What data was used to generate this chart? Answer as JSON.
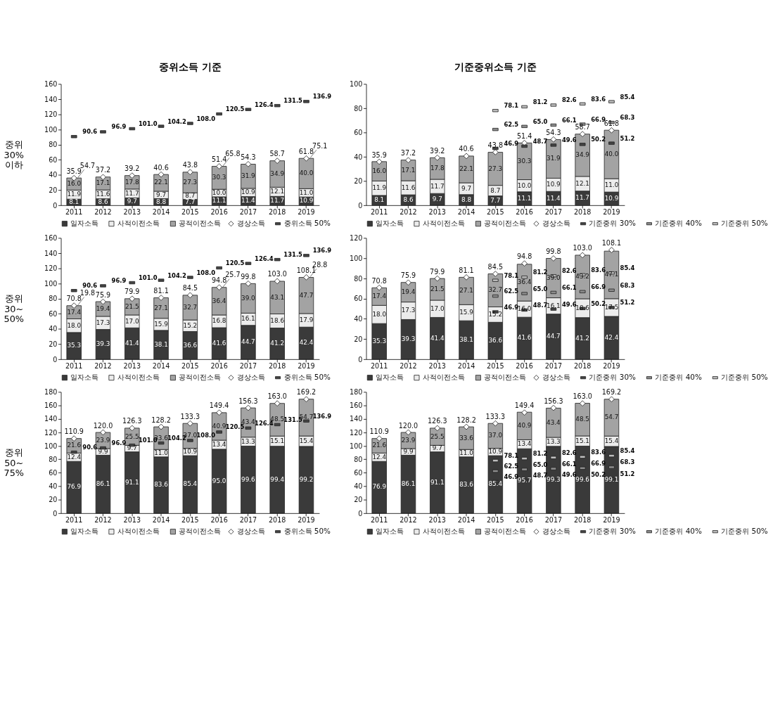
{
  "chart_data": [
    {
      "type": "bar",
      "stacked": true,
      "title": "중위소득 기준",
      "ylabel": "중위\n30%\n이하",
      "categories": [
        "2011",
        "2012",
        "2013",
        "2014",
        "2015",
        "2016",
        "2017",
        "2018",
        "2019"
      ],
      "ylim": [
        0,
        160
      ],
      "yticks": [
        0,
        20,
        40,
        60,
        80,
        100,
        120,
        140,
        160
      ],
      "legend": "bottom",
      "series": [
        {
          "name": "일자소득",
          "color": "#3a3a3a",
          "values": [
            8.1,
            8.6,
            9.7,
            8.8,
            7.7,
            11.1,
            11.4,
            11.7,
            10.9
          ],
          "value_labels": [
            "8.1",
            "8.6",
            "9.7",
            "8.8",
            "7.7",
            "11.1",
            "11.4",
            "11.7",
            "10.9"
          ]
        },
        {
          "name": "사적이전소득",
          "color": "#ececec",
          "values": [
            11.9,
            11.6,
            11.7,
            9.7,
            8.7,
            10.0,
            10.9,
            12.1,
            11.0
          ],
          "value_labels": [
            "11.9",
            "11.6",
            "11.7",
            "9.7",
            "8.7",
            "10.0",
            "10.9",
            "12.1",
            "11.0"
          ]
        },
        {
          "name": "공적이전소득",
          "color": "#a3a3a3",
          "values": [
            16.0,
            17.1,
            17.8,
            22.1,
            27.3,
            30.3,
            31.9,
            34.9,
            40.0
          ],
          "value_labels": [
            "16.0",
            "17.1",
            "17.8",
            "22.1",
            "27.3",
            "30.3",
            "31.9",
            "34.9",
            "40.0"
          ]
        },
        {
          "name": "경상소득",
          "type": "scatter",
          "marker": "diamond",
          "color": "#ffffff",
          "values": [
            35.9,
            37.2,
            39.2,
            40.6,
            43.8,
            51.4,
            54.3,
            58.7,
            61.8
          ],
          "value_labels": [
            "35.9",
            "37.2",
            "39.2",
            "40.6",
            "43.8",
            "51.4",
            "54.3",
            "58.7",
            "61.8"
          ]
        },
        {
          "name": "중위소득 50%",
          "type": "scatter",
          "color": "#444444",
          "values": [
            90.6,
            96.9,
            101.0,
            104.2,
            108.0,
            120.5,
            126.4,
            131.5,
            136.9
          ],
          "value_labels": [
            "90.6",
            "96.9",
            "101.0",
            "104.2",
            "108.0",
            "120.5",
            "126.4",
            "131.5",
            "136.9"
          ]
        }
      ],
      "annotations": [
        {
          "text": "54.7",
          "x": "2011",
          "y": 35.9
        },
        {
          "text": "65.8",
          "x": "2016",
          "y": 51.4
        },
        {
          "text": "75.1",
          "x": "2019",
          "y": 61.8
        }
      ]
    },
    {
      "type": "bar",
      "stacked": true,
      "title": "기준중위소득 기준",
      "categories": [
        "2011",
        "2012",
        "2013",
        "2014",
        "2015",
        "2016",
        "2017",
        "2018",
        "2019"
      ],
      "ylim": [
        0,
        100
      ],
      "yticks": [
        0,
        20,
        40,
        60,
        80,
        100
      ],
      "legend": "bottom",
      "series": [
        {
          "name": "일자소득",
          "color": "#3a3a3a",
          "values": [
            8.1,
            8.6,
            9.7,
            8.8,
            7.7,
            11.1,
            11.4,
            11.7,
            10.9
          ],
          "value_labels": [
            "8.1",
            "8.6",
            "9.7",
            "8.8",
            "7.7",
            "11.1",
            "11.4",
            "11.7",
            "10.9"
          ]
        },
        {
          "name": "사적이전소득",
          "color": "#ececec",
          "values": [
            11.9,
            11.6,
            11.7,
            9.7,
            8.7,
            10.0,
            10.9,
            12.1,
            11.0
          ],
          "value_labels": [
            "11.9",
            "11.6",
            "11.7",
            "9.7",
            "8.7",
            "10.0",
            "10.9",
            "12.1",
            "11.0"
          ]
        },
        {
          "name": "공적이전소득",
          "color": "#a3a3a3",
          "values": [
            16.0,
            17.1,
            17.8,
            22.1,
            27.3,
            30.3,
            31.9,
            34.9,
            40.0
          ],
          "value_labels": [
            "16.0",
            "17.1",
            "17.8",
            "22.1",
            "27.3",
            "30.3",
            "31.9",
            "34.9",
            "40.0"
          ]
        },
        {
          "name": "경상소득",
          "type": "scatter",
          "marker": "diamond",
          "color": "#ffffff",
          "values": [
            35.9,
            37.2,
            39.2,
            40.6,
            43.8,
            51.4,
            54.3,
            58.7,
            61.8
          ],
          "value_labels": [
            "35.9",
            "37.2",
            "39.2",
            "40.6",
            "43.8",
            "51.4",
            "54.3",
            "58.7",
            "61.8"
          ]
        },
        {
          "name": "기준중위 30%",
          "type": "scatter",
          "color": "#444444",
          "values": [
            null,
            null,
            null,
            null,
            46.9,
            48.7,
            49.6,
            50.2,
            51.2
          ],
          "value_labels": [
            null,
            null,
            null,
            null,
            "46.9",
            "48.7",
            "49.6",
            "50.2",
            "51.2"
          ]
        },
        {
          "name": "기준중위 40%",
          "type": "scatter",
          "color": "#8c8c8c",
          "values": [
            null,
            null,
            null,
            null,
            62.5,
            65.0,
            66.1,
            66.9,
            68.3
          ],
          "value_labels": [
            null,
            null,
            null,
            null,
            "62.5",
            "65.0",
            "66.1",
            "66.9",
            "68.3"
          ]
        },
        {
          "name": "기준중위 50%",
          "type": "scatter",
          "color": "#bdbdbd",
          "values": [
            null,
            null,
            null,
            null,
            78.1,
            81.2,
            82.6,
            83.6,
            85.4
          ],
          "value_labels": [
            null,
            null,
            null,
            null,
            "78.1",
            "81.2",
            "82.6",
            "83.6",
            "85.4"
          ]
        }
      ]
    },
    {
      "type": "bar",
      "stacked": true,
      "ylabel": "중위\n30~\n50%",
      "categories": [
        "2011",
        "2012",
        "2013",
        "2014",
        "2015",
        "2016",
        "2017",
        "2018",
        "2019"
      ],
      "ylim": [
        0,
        160
      ],
      "yticks": [
        0,
        20,
        40,
        60,
        80,
        100,
        120,
        140,
        160
      ],
      "legend": "bottom",
      "series": [
        {
          "name": "일자소득",
          "color": "#3a3a3a",
          "values": [
            35.3,
            39.3,
            41.4,
            38.1,
            36.6,
            41.6,
            44.7,
            41.2,
            42.4
          ],
          "value_labels": [
            "35.3",
            "39.3",
            "41.4",
            "38.1",
            "36.6",
            "41.6",
            "44.7",
            "41.2",
            "42.4"
          ]
        },
        {
          "name": "사적이전소득",
          "color": "#ececec",
          "values": [
            18.0,
            17.3,
            17.0,
            15.9,
            15.2,
            16.8,
            16.1,
            18.6,
            17.9
          ],
          "value_labels": [
            "18.0",
            "17.3",
            "17.0",
            "15.9",
            "15.2",
            "16.8",
            "16.1",
            "18.6",
            "17.9"
          ]
        },
        {
          "name": "공적이전소득",
          "color": "#a3a3a3",
          "values": [
            17.4,
            19.4,
            21.5,
            27.1,
            32.7,
            36.4,
            39.0,
            43.1,
            47.7
          ],
          "value_labels": [
            "17.4",
            "19.4",
            "21.5",
            "27.1",
            "32.7",
            "36.4",
            "39.0",
            "43.1",
            "47.7"
          ]
        },
        {
          "name": "경상소득",
          "type": "scatter",
          "marker": "diamond",
          "color": "#ffffff",
          "values": [
            70.8,
            75.9,
            79.9,
            81.1,
            84.5,
            94.8,
            99.8,
            103.0,
            108.1
          ],
          "value_labels": [
            "70.8",
            "75.9",
            "79.9",
            "81.1",
            "84.5",
            "94.8",
            "99.8",
            "103.0",
            "108.1"
          ]
        },
        {
          "name": "중위소득 50%",
          "type": "scatter",
          "color": "#444444",
          "values": [
            90.6,
            96.9,
            101.0,
            104.2,
            108.0,
            120.5,
            126.4,
            131.5,
            136.9
          ],
          "value_labels": [
            "90.6",
            "96.9",
            "101.0",
            "104.2",
            "108.0",
            "120.5",
            "126.4",
            "131.5",
            "136.9"
          ]
        }
      ],
      "annotations": [
        {
          "text": "19.8",
          "x": "2011",
          "y": 70.8
        },
        {
          "text": "25.7",
          "x": "2016",
          "y": 94.8
        },
        {
          "text": "28.8",
          "x": "2019",
          "y": 108.1
        }
      ]
    },
    {
      "type": "bar",
      "stacked": true,
      "categories": [
        "2011",
        "2012",
        "2013",
        "2014",
        "2015",
        "2016",
        "2017",
        "2018",
        "2019"
      ],
      "ylim": [
        0,
        120
      ],
      "yticks": [
        0,
        20,
        40,
        60,
        80,
        100,
        120
      ],
      "legend": "bottom",
      "series": [
        {
          "name": "일자소득",
          "color": "#3a3a3a",
          "values": [
            35.3,
            39.3,
            41.4,
            38.1,
            36.6,
            41.6,
            44.7,
            41.2,
            42.4
          ],
          "value_labels": [
            "35.3",
            "39.3",
            "41.4",
            "38.1",
            "36.6",
            "41.6",
            "44.7",
            "41.2",
            "42.4"
          ]
        },
        {
          "name": "사적이전소득",
          "color": "#ececec",
          "values": [
            18.0,
            17.3,
            17.0,
            15.9,
            15.2,
            16.0,
            16.1,
            18.6,
            17.5
          ],
          "value_labels": [
            "18.0",
            "17.3",
            "17.0",
            "15.9",
            "15.2",
            "16.0",
            "16.1",
            "18.6",
            "17.5"
          ]
        },
        {
          "name": "공적이전소득",
          "color": "#a3a3a3",
          "values": [
            17.4,
            19.4,
            21.5,
            27.1,
            32.7,
            36.4,
            39.0,
            43.2,
            47.1
          ],
          "value_labels": [
            "17.4",
            "19.4",
            "21.5",
            "27.1",
            "32.7",
            "36.4",
            "39.0",
            "43.2",
            "47.1"
          ]
        },
        {
          "name": "경상소득",
          "type": "scatter",
          "marker": "diamond",
          "color": "#ffffff",
          "values": [
            70.8,
            75.9,
            79.9,
            81.1,
            84.5,
            94.8,
            99.8,
            103.0,
            108.1
          ],
          "value_labels": [
            "70.8",
            "75.9",
            "79.9",
            "81.1",
            "84.5",
            "94.8",
            "99.8",
            "103.0",
            "108.1"
          ]
        },
        {
          "name": "기준중위 30%",
          "type": "scatter",
          "color": "#444444",
          "values": [
            null,
            null,
            null,
            null,
            46.9,
            48.7,
            49.6,
            50.2,
            51.2
          ],
          "value_labels": [
            null,
            null,
            null,
            null,
            "46.9",
            "48.7",
            "49.6",
            "50.2",
            "51.2"
          ]
        },
        {
          "name": "기준중위 40%",
          "type": "scatter",
          "color": "#8c8c8c",
          "values": [
            null,
            null,
            null,
            null,
            62.5,
            65.0,
            66.1,
            66.9,
            68.3
          ],
          "value_labels": [
            null,
            null,
            null,
            null,
            "62.5",
            "65.0",
            "66.1",
            "66.9",
            "68.3"
          ]
        },
        {
          "name": "기준중위 50%",
          "type": "scatter",
          "color": "#bdbdbd",
          "values": [
            null,
            null,
            null,
            null,
            78.1,
            81.2,
            82.6,
            83.6,
            85.4
          ],
          "value_labels": [
            null,
            null,
            null,
            null,
            "78.1",
            "81.2",
            "82.6",
            "83.6",
            "85.4"
          ]
        }
      ]
    },
    {
      "type": "bar",
      "stacked": true,
      "ylabel": "중위\n50~\n75%",
      "categories": [
        "2011",
        "2012",
        "2013",
        "2014",
        "2015",
        "2016",
        "2017",
        "2018",
        "2019"
      ],
      "ylim": [
        0,
        180
      ],
      "yticks": [
        0,
        20,
        40,
        60,
        80,
        100,
        120,
        140,
        160,
        180
      ],
      "legend": "bottom",
      "series": [
        {
          "name": "일자소득",
          "color": "#3a3a3a",
          "values": [
            76.9,
            86.1,
            91.1,
            83.6,
            85.4,
            95.0,
            99.6,
            99.4,
            99.2
          ],
          "value_labels": [
            "76.9",
            "86.1",
            "91.1",
            "83.6",
            "85.4",
            "95.0",
            "99.6",
            "99.4",
            "99.2"
          ]
        },
        {
          "name": "사적이전소득",
          "color": "#ececec",
          "values": [
            12.4,
            9.9,
            9.7,
            11.0,
            10.9,
            13.4,
            13.3,
            15.1,
            15.4
          ],
          "value_labels": [
            "12.4",
            "9.9",
            "9.7",
            "11.0",
            "10.9",
            "13.4",
            "13.3",
            "15.1",
            "15.4"
          ]
        },
        {
          "name": "공적이전소득",
          "color": "#a3a3a3",
          "values": [
            21.6,
            23.9,
            25.5,
            33.6,
            37.0,
            40.9,
            43.4,
            48.5,
            54.7
          ],
          "value_labels": [
            "21.6",
            "23.9",
            "25.5",
            "33.6",
            "37.0",
            "40.9",
            "43.4",
            "48.5",
            "54.7"
          ]
        },
        {
          "name": "경상소득",
          "type": "scatter",
          "marker": "diamond",
          "color": "#ffffff",
          "values": [
            110.9,
            120.0,
            126.3,
            128.2,
            133.3,
            149.4,
            156.3,
            163.0,
            169.2
          ],
          "value_labels": [
            "110.9",
            "120.0",
            "126.3",
            "128.2",
            "133.3",
            "149.4",
            "156.3",
            "163.0",
            "169.2"
          ]
        },
        {
          "name": "중위소득 50%",
          "type": "scatter",
          "color": "#444444",
          "values": [
            90.6,
            96.9,
            101.0,
            104.2,
            108.0,
            120.5,
            126.4,
            131.5,
            136.9
          ],
          "value_labels": [
            "90.6",
            "96.9",
            "101.0",
            "104.2",
            "108.0",
            "120.5",
            "126.4",
            "131.5",
            "136.9"
          ]
        }
      ]
    },
    {
      "type": "bar",
      "stacked": true,
      "categories": [
        "2011",
        "2012",
        "2013",
        "2014",
        "2015",
        "2016",
        "2017",
        "2018",
        "2019"
      ],
      "ylim": [
        0,
        180
      ],
      "yticks": [
        0,
        20,
        40,
        60,
        80,
        100,
        120,
        140,
        160,
        180
      ],
      "legend": "bottom",
      "series": [
        {
          "name": "일자소득",
          "color": "#3a3a3a",
          "values": [
            76.9,
            86.1,
            91.1,
            83.6,
            85.4,
            95.7,
            99.3,
            99.6,
            99.1
          ],
          "value_labels": [
            "76.9",
            "86.1",
            "91.1",
            "83.6",
            "85.4",
            "95.7",
            "99.3",
            "99.6",
            "99.1"
          ]
        },
        {
          "name": "사적이전소득",
          "color": "#ececec",
          "values": [
            12.4,
            9.9,
            9.7,
            11.0,
            10.9,
            13.4,
            13.3,
            15.1,
            15.4
          ],
          "value_labels": [
            "12.4",
            "9.9",
            "9.7",
            "11.0",
            "10.9",
            "13.4",
            "13.3",
            "15.1",
            "15.4"
          ]
        },
        {
          "name": "공적이전소득",
          "color": "#a3a3a3",
          "values": [
            21.6,
            23.9,
            25.5,
            33.6,
            37.0,
            40.9,
            43.4,
            48.5,
            54.7
          ],
          "value_labels": [
            "21.6",
            "23.9",
            "25.5",
            "33.6",
            "37.0",
            "40.9",
            "43.4",
            "48.5",
            "54.7"
          ]
        },
        {
          "name": "경상소득",
          "type": "scatter",
          "marker": "diamond",
          "color": "#ffffff",
          "values": [
            110.9,
            120.0,
            126.3,
            128.2,
            133.3,
            149.4,
            156.3,
            163.0,
            169.2
          ],
          "value_labels": [
            "110.9",
            "120.0",
            "126.3",
            "128.2",
            "133.3",
            "149.4",
            "156.3",
            "163.0",
            "169.2"
          ]
        },
        {
          "name": "기준중위 30%",
          "type": "scatter",
          "color": "#444444",
          "values": [
            null,
            null,
            null,
            null,
            46.9,
            48.7,
            49.6,
            50.2,
            51.2
          ],
          "value_labels": [
            null,
            null,
            null,
            null,
            "46.9",
            "48.7",
            "49.6",
            "50.2",
            "51.2"
          ]
        },
        {
          "name": "기준중위 40%",
          "type": "scatter",
          "color": "#8c8c8c",
          "values": [
            null,
            null,
            null,
            null,
            62.5,
            65.0,
            66.1,
            66.9,
            68.3
          ],
          "value_labels": [
            null,
            null,
            null,
            null,
            "62.5",
            "65.0",
            "66.1",
            "66.9",
            "68.3"
          ]
        },
        {
          "name": "기준중위 50%",
          "type": "scatter",
          "color": "#bdbdbd",
          "values": [
            null,
            null,
            null,
            null,
            78.1,
            81.2,
            82.6,
            83.6,
            85.4
          ],
          "value_labels": [
            null,
            null,
            null,
            null,
            "78.1",
            "81.2",
            "82.6",
            "83.6",
            "85.4"
          ]
        }
      ]
    }
  ]
}
